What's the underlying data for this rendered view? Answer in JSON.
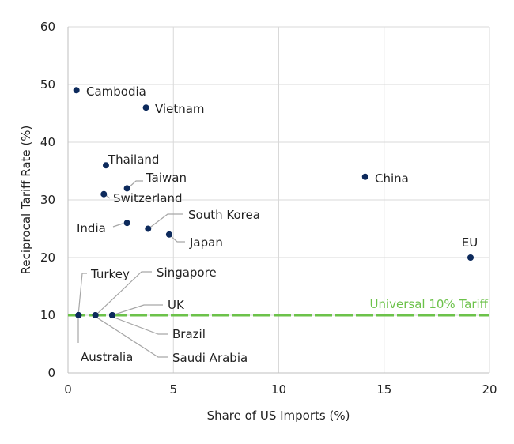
{
  "chart_data": {
    "type": "scatter",
    "title": "",
    "xlabel": "Share of US Imports (%)",
    "ylabel": "Reciprocal Tariff Rate (%)",
    "xlim": [
      0,
      20
    ],
    "ylim": [
      0,
      60
    ],
    "xticks": [
      0,
      5,
      10,
      15,
      20
    ],
    "yticks": [
      0,
      10,
      20,
      30,
      40,
      50,
      60
    ],
    "grid": "both",
    "colors": {
      "point": "#0d2a5c",
      "reference_line": "#6cc24a",
      "leader": "#a6a6a6",
      "grid": "#d9d9d9"
    },
    "reference_line": {
      "y": 10,
      "label": "Universal 10% Tariff",
      "style": "dashed"
    },
    "points": [
      {
        "label": "Cambodia",
        "x": 0.4,
        "y": 49
      },
      {
        "label": "Vietnam",
        "x": 3.7,
        "y": 46
      },
      {
        "label": "Thailand",
        "x": 1.8,
        "y": 36
      },
      {
        "label": "Taiwan",
        "x": 2.8,
        "y": 32
      },
      {
        "label": "Switzerland",
        "x": 1.7,
        "y": 31
      },
      {
        "label": "India",
        "x": 2.8,
        "y": 26
      },
      {
        "label": "South Korea",
        "x": 3.8,
        "y": 25
      },
      {
        "label": "Japan",
        "x": 4.8,
        "y": 24
      },
      {
        "label": "China",
        "x": 14.1,
        "y": 34
      },
      {
        "label": "EU",
        "x": 19.1,
        "y": 20
      },
      {
        "label": "Turkey",
        "x": 0.5,
        "y": 10
      },
      {
        "label": "Australia",
        "x": 0.5,
        "y": 10
      },
      {
        "label": "Singapore",
        "x": 1.3,
        "y": 10
      },
      {
        "label": "Saudi Arabia",
        "x": 1.3,
        "y": 10
      },
      {
        "label": "UK",
        "x": 2.1,
        "y": 10
      },
      {
        "label": "Brazil",
        "x": 2.1,
        "y": 10
      }
    ]
  }
}
